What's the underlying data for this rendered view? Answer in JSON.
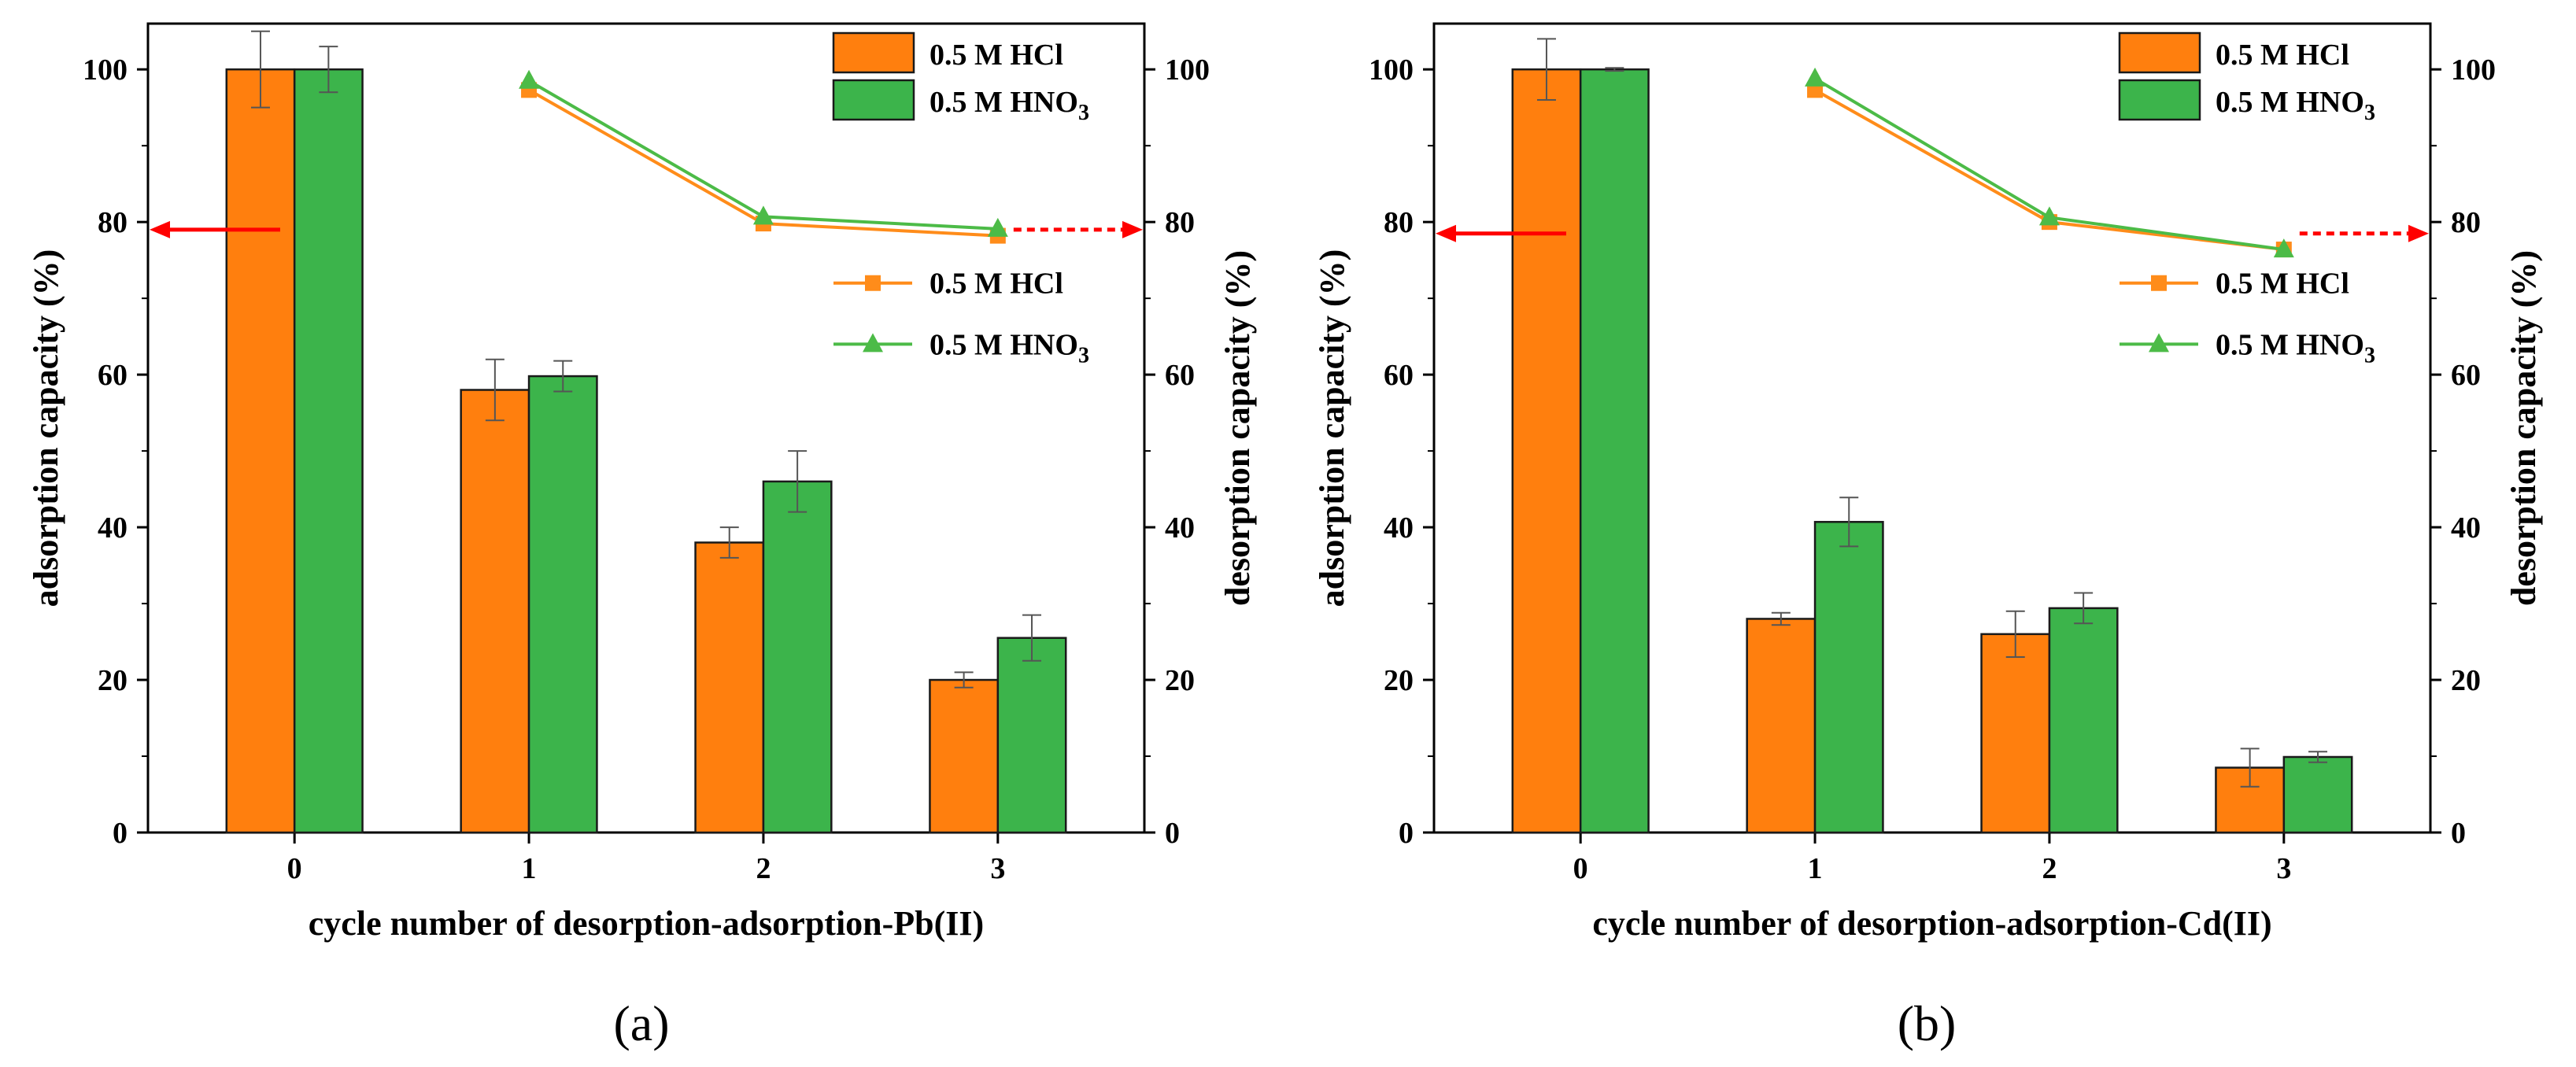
{
  "figure": {
    "panel_labels": {
      "a": "(a)",
      "b": "(b)"
    }
  },
  "legend_labels": {
    "bar_hcl": "0.5 M HCl",
    "bar_hno3_prefix": "0.5 M HNO",
    "bar_hno3_sub": "3",
    "line_hcl": "0.5 M HCl",
    "line_hno3_prefix": "0.5 M HNO",
    "line_hno3_sub": "3"
  },
  "colors": {
    "hcl": "#ff7f0e",
    "hno3": "#3cb44b",
    "line_hcl": "#ff8c1a",
    "line_hno3": "#4cbb47",
    "arrow": "#ff0000",
    "axis": "#000000",
    "error_bar": "#555555"
  },
  "chart_data": [
    {
      "type": "bar",
      "panel": "(a)",
      "title": "",
      "xlabel": "cycle number of desorption-adsorption-Pb(II)",
      "ylabel": "adsorption capacity (%)",
      "y2label": "desorption capacity (%)",
      "categories": [
        "0",
        "1",
        "2",
        "3"
      ],
      "ylim": [
        0,
        106
      ],
      "y2lim": [
        0,
        106
      ],
      "yticks": [
        0,
        20,
        40,
        60,
        80,
        100
      ],
      "series": [
        {
          "name": "0.5 M HCl",
          "axis": "left",
          "kind": "bar",
          "values": [
            100,
            58,
            38,
            20
          ],
          "errors": [
            5,
            4,
            2,
            1
          ]
        },
        {
          "name": "0.5 M HNO3",
          "axis": "left",
          "kind": "bar",
          "values": [
            100,
            59.8,
            46,
            25.5
          ],
          "errors": [
            3,
            2,
            4,
            3
          ]
        }
      ],
      "line_series": [
        {
          "name": "0.5 M HCl",
          "axis": "right",
          "kind": "line",
          "marker": "square",
          "x": [
            "1",
            "2",
            "3"
          ],
          "values": [
            97.3,
            79.8,
            78.2
          ]
        },
        {
          "name": "0.5 M HNO3",
          "axis": "right",
          "kind": "line",
          "marker": "triangle",
          "x": [
            "1",
            "2",
            "3"
          ],
          "values": [
            98.5,
            80.7,
            79.1
          ]
        }
      ],
      "arrows": [
        {
          "points_to": "left axis",
          "y": 79
        },
        {
          "points_to": "right axis",
          "y": 79
        }
      ]
    },
    {
      "type": "bar",
      "panel": "(b)",
      "title": "",
      "xlabel": "cycle number of desorption-adsorption-Cd(II)",
      "ylabel": "adsorption capacity (%)",
      "y2label": "desorption capacity (%)",
      "categories": [
        "0",
        "1",
        "2",
        "3"
      ],
      "ylim": [
        0,
        106
      ],
      "y2lim": [
        0,
        106
      ],
      "yticks": [
        0,
        20,
        40,
        60,
        80,
        100
      ],
      "series": [
        {
          "name": "0.5 M HCl",
          "axis": "left",
          "kind": "bar",
          "values": [
            100,
            28,
            26,
            8.5
          ],
          "errors": [
            4,
            0.8,
            3,
            2.5
          ]
        },
        {
          "name": "0.5 M HNO3",
          "axis": "left",
          "kind": "bar",
          "values": [
            100,
            40.7,
            29.4,
            9.9
          ],
          "errors": [
            0.2,
            3.2,
            2,
            0.7
          ]
        }
      ],
      "line_series": [
        {
          "name": "0.5 M HCl",
          "axis": "right",
          "kind": "line",
          "marker": "square",
          "x": [
            "1",
            "2",
            "3"
          ],
          "values": [
            97.3,
            80,
            76.4
          ]
        },
        {
          "name": "0.5 M HNO3",
          "axis": "right",
          "kind": "line",
          "marker": "triangle",
          "x": [
            "1",
            "2",
            "3"
          ],
          "values": [
            98.8,
            80.6,
            76.4
          ]
        }
      ],
      "arrows": [
        {
          "points_to": "left axis",
          "y": 78.5
        },
        {
          "points_to": "right axis",
          "y": 78.5
        }
      ]
    }
  ]
}
